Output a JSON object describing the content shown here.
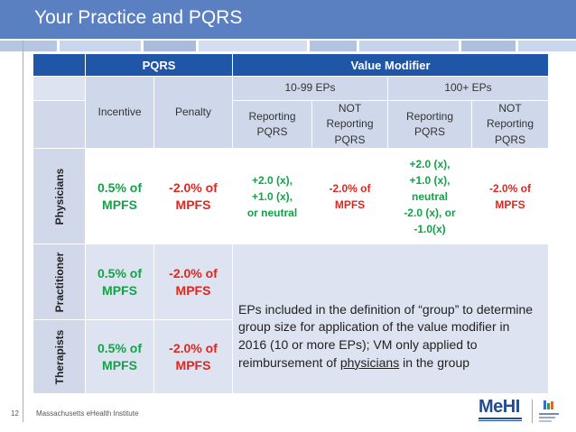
{
  "header": {
    "title": "Your Practice and PQRS"
  },
  "colors": {
    "header_bg": "#5b80c2",
    "table_header": "#1f56a8",
    "green": "#11a447",
    "red": "#e0261f"
  },
  "table": {
    "header_pqrs": "PQRS",
    "header_value_modifier": "Value Modifier",
    "group_10_99": "10-99 EPs",
    "group_100": "100+ EPs",
    "incentive": "Incentive",
    "penalty": "Penalty",
    "reporting": "Reporting PQRS",
    "not_reporting_l1": "NOT",
    "not_reporting_l2": "Reporting",
    "not_reporting_l3": "PQRS",
    "rows": {
      "physicians": {
        "label": "Physicians",
        "incentive": "0.5% of MPFS",
        "penalty": "-2.0% of MPFS",
        "vm_small_reporting": [
          "+2.0 (x),",
          "+1.0 (x),",
          "or neutral"
        ],
        "vm_small_not": "-2.0% of MPFS",
        "vm_large_reporting": [
          "+2.0 (x),",
          "+1.0 (x),",
          "neutral",
          "-2.0 (x), or",
          "-1.0(x)"
        ],
        "vm_large_not": "-2.0% of MPFS"
      },
      "practitioner": {
        "label": "Practitioner",
        "incentive": "0.5% of MPFS",
        "penalty": "-2.0% of MPFS"
      },
      "therapists": {
        "label": "Therapists",
        "incentive": "0.5% of MPFS",
        "penalty": "-2.0% of MPFS"
      }
    },
    "note_before": "EPs included in the definition of “group” to determine group size for application of the value modifier in 2016 (10 or more EPs); VM only applied to reimbursement of ",
    "note_underlined": "physicians",
    "note_after": " in the group"
  },
  "footer": {
    "page_number": "12",
    "organization": "Massachusetts eHealth Institute",
    "logo_text": "MeHI"
  }
}
